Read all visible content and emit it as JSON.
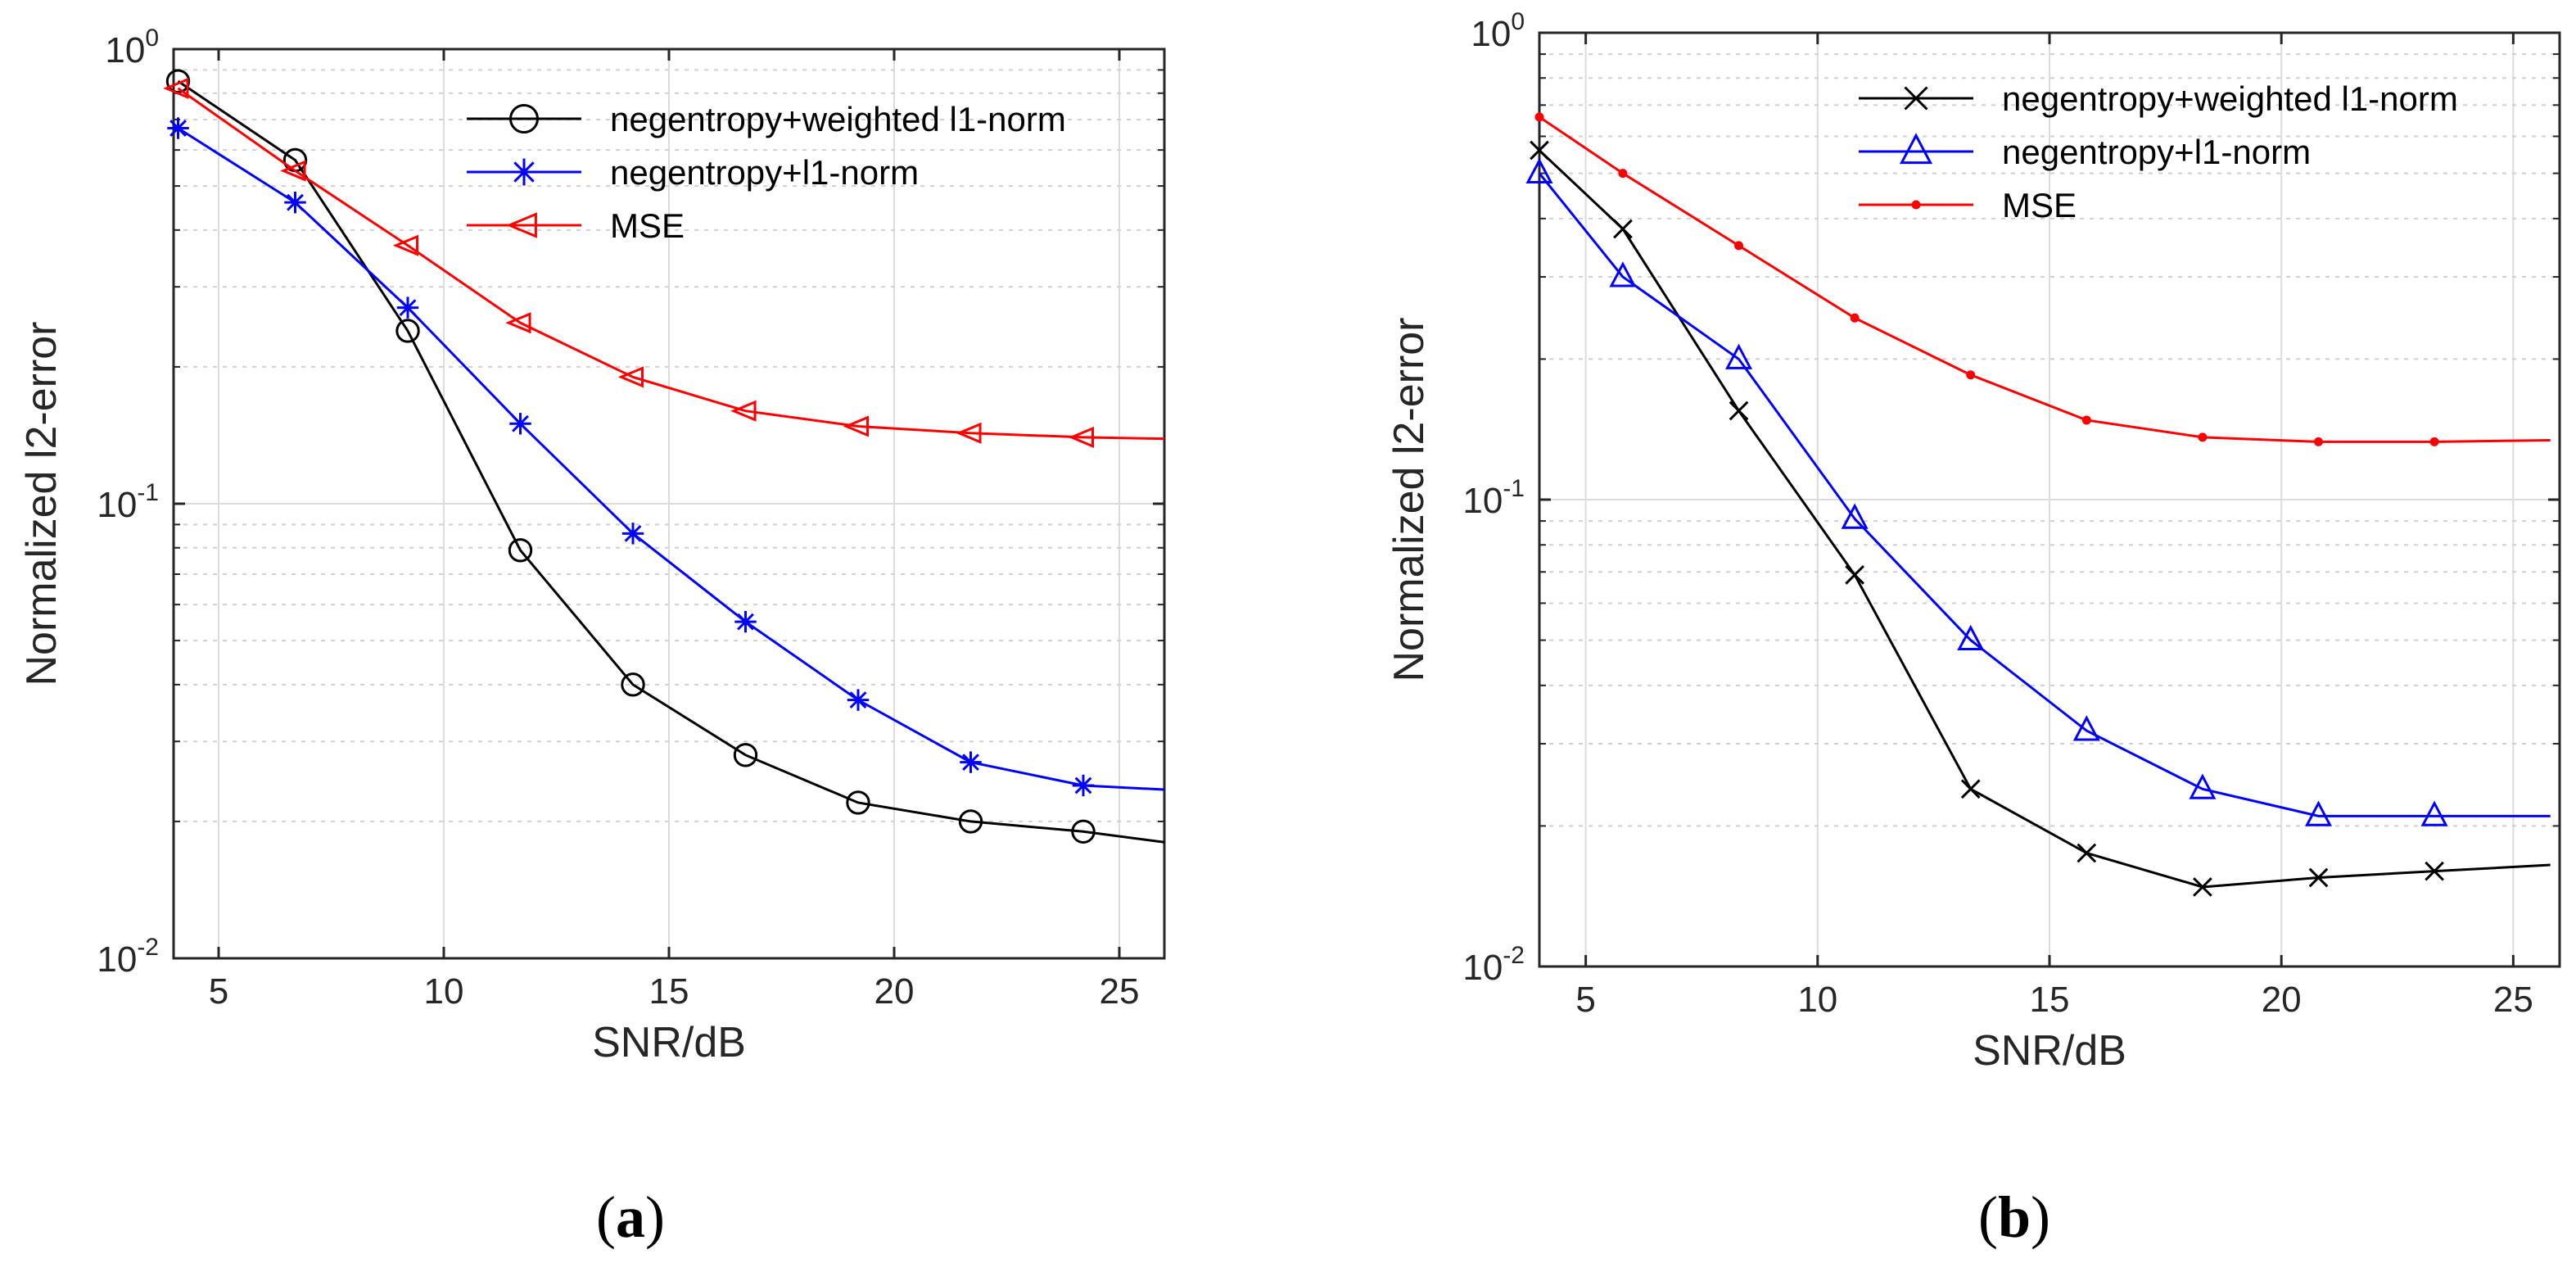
{
  "figure": {
    "panels": [
      {
        "caption_open": "(",
        "caption_letter": "a",
        "caption_close": ")"
      },
      {
        "caption_open": "(",
        "caption_letter": "b",
        "caption_close": ")"
      }
    ]
  },
  "chart_data": [
    {
      "type": "line",
      "panel": "a",
      "xlabel": "SNR/dB",
      "ylabel": "Normalized l2-error",
      "xlim": [
        4,
        26
      ],
      "ylim": [
        0.01,
        1
      ],
      "yscale": "log",
      "xticks": [
        5,
        10,
        15,
        20,
        25
      ],
      "yticks": [
        {
          "base": "10",
          "exp": "-2",
          "value": 0.01
        },
        {
          "base": "10",
          "exp": "-1",
          "value": 0.1
        },
        {
          "base": "10",
          "exp": "0",
          "value": 1
        }
      ],
      "grid": true,
      "legend_position": "top-right",
      "series": [
        {
          "name": "negentropy+weighted l1-norm",
          "color": "#000000",
          "marker": "circle",
          "x": [
            4.1,
            6.7,
            9.2,
            11.7,
            14.2,
            16.7,
            19.2,
            21.7,
            24.2,
            26
          ],
          "y": [
            0.85,
            0.57,
            0.24,
            0.079,
            0.04,
            0.028,
            0.022,
            0.02,
            0.019,
            0.018
          ],
          "marker_count": 9
        },
        {
          "name": "negentropy+l1-norm",
          "color": "#0000ff",
          "marker": "asterisk",
          "x": [
            4.1,
            6.7,
            9.2,
            11.7,
            14.2,
            16.7,
            19.2,
            21.7,
            24.2,
            26
          ],
          "y": [
            0.67,
            0.46,
            0.27,
            0.15,
            0.086,
            0.055,
            0.037,
            0.027,
            0.024,
            0.0235
          ],
          "marker_count": 9
        },
        {
          "name": "MSE",
          "color": "#ff0000",
          "marker": "triangle-left",
          "x": [
            4.1,
            6.7,
            9.2,
            11.7,
            14.2,
            16.7,
            19.2,
            21.7,
            24.2,
            26
          ],
          "y": [
            0.82,
            0.54,
            0.37,
            0.25,
            0.19,
            0.16,
            0.148,
            0.143,
            0.14,
            0.139
          ],
          "marker_count": 9
        }
      ]
    },
    {
      "type": "line",
      "panel": "b",
      "xlabel": "SNR/dB",
      "ylabel": "Normalized l2-error",
      "xlim": [
        4,
        26
      ],
      "ylim": [
        0.01,
        1
      ],
      "yscale": "log",
      "xticks": [
        5,
        10,
        15,
        20,
        25
      ],
      "yticks": [
        {
          "base": "10",
          "exp": "-2",
          "value": 0.01
        },
        {
          "base": "10",
          "exp": "-1",
          "value": 0.1
        },
        {
          "base": "10",
          "exp": "0",
          "value": 1
        }
      ],
      "grid": true,
      "legend_position": "top-right",
      "series": [
        {
          "name": "negentropy+weighted l1-norm",
          "color": "#000000",
          "marker": "x",
          "x": [
            4,
            5.8,
            8.3,
            10.8,
            13.3,
            15.8,
            18.3,
            20.8,
            23.3,
            25.8
          ],
          "y": [
            0.56,
            0.38,
            0.155,
            0.069,
            0.024,
            0.0175,
            0.0148,
            0.0155,
            0.016,
            0.0165
          ],
          "marker_count": 9
        },
        {
          "name": "negentropy+l1-norm",
          "color": "#0000ff",
          "marker": "triangle-up",
          "x": [
            4,
            5.8,
            8.3,
            10.8,
            13.3,
            15.8,
            18.3,
            20.8,
            23.3,
            25.8
          ],
          "y": [
            0.5,
            0.3,
            0.2,
            0.091,
            0.05,
            0.032,
            0.024,
            0.021,
            0.021,
            0.021
          ],
          "marker_count": 9
        },
        {
          "name": "MSE",
          "color": "#ff0000",
          "marker": "point",
          "x": [
            4,
            5.8,
            8.3,
            10.8,
            13.3,
            15.8,
            18.3,
            20.8,
            23.3,
            25.8
          ],
          "y": [
            0.66,
            0.5,
            0.35,
            0.245,
            0.185,
            0.148,
            0.136,
            0.133,
            0.133,
            0.134
          ],
          "marker_count": 9
        }
      ]
    }
  ]
}
